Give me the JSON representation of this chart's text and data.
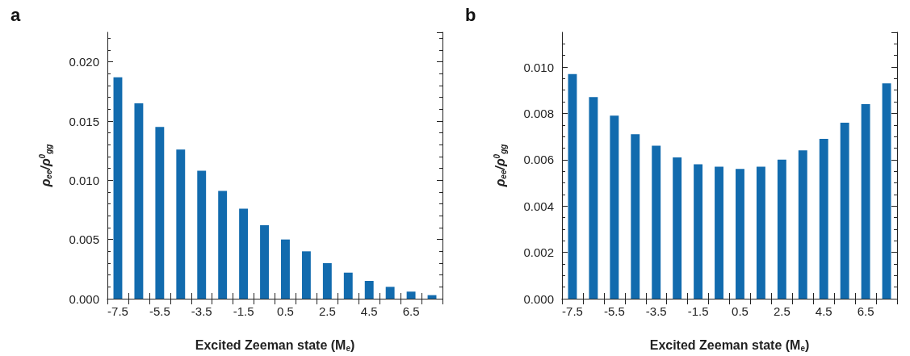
{
  "chart_data": [
    {
      "type": "bar",
      "title": "a",
      "xlabel": "Excited Zeeman state (M$_{e}$)",
      "ylabel": "ρ$_{ee}$/ρ$^{0}$$_{gg}$",
      "categories": [
        "-7.5",
        null,
        "-5.5",
        null,
        "-3.5",
        null,
        "-1.5",
        null,
        "0.5",
        null,
        "2.5",
        null,
        "4.5",
        null,
        "6.5",
        null
      ],
      "series": [
        {
          "color": "#126bae",
          "values": [
            0.0187,
            0.0165,
            0.0145,
            0.0126,
            0.0108,
            0.0091,
            0.0076,
            0.0062,
            0.005,
            0.004,
            0.003,
            0.0022,
            0.0015,
            0.001,
            0.0006,
            0.0003
          ]
        }
      ],
      "ylim": [
        0,
        0.0225
      ],
      "yticks": [
        {
          "value": 0,
          "label": "0.000"
        },
        0.005,
        {
          "value": 0.01,
          "label": "0.010"
        },
        0.015,
        {
          "value": 0.02,
          "label": "0.020"
        }
      ],
      "grid": false
    },
    {
      "type": "bar",
      "title": "b",
      "xlabel": "Excited Zeeman state (M$_{e}$)",
      "ylabel": "ρ$_{ee}$/ρ$^{0}$$_{gg}$",
      "categories": [
        "-7.5",
        null,
        "-5.5",
        null,
        "-3.5",
        null,
        "-1.5",
        null,
        "0.5",
        null,
        "2.5",
        null,
        "4.5",
        null,
        "6.5",
        null
      ],
      "series": [
        {
          "color": "#126bae",
          "values": [
            0.0097,
            0.0087,
            0.0079,
            0.0071,
            0.0066,
            0.0061,
            0.0058,
            0.0057,
            0.0056,
            0.0057,
            0.006,
            0.0064,
            0.0069,
            0.0076,
            0.0084,
            0.0093
          ]
        }
      ],
      "ylim": [
        0,
        0.0115
      ],
      "yticks": [
        {
          "value": 0,
          "label": "0.000"
        },
        0.002,
        0.004,
        0.006,
        0.008,
        {
          "value": 0.01,
          "label": "0.010"
        }
      ],
      "grid": false
    }
  ]
}
